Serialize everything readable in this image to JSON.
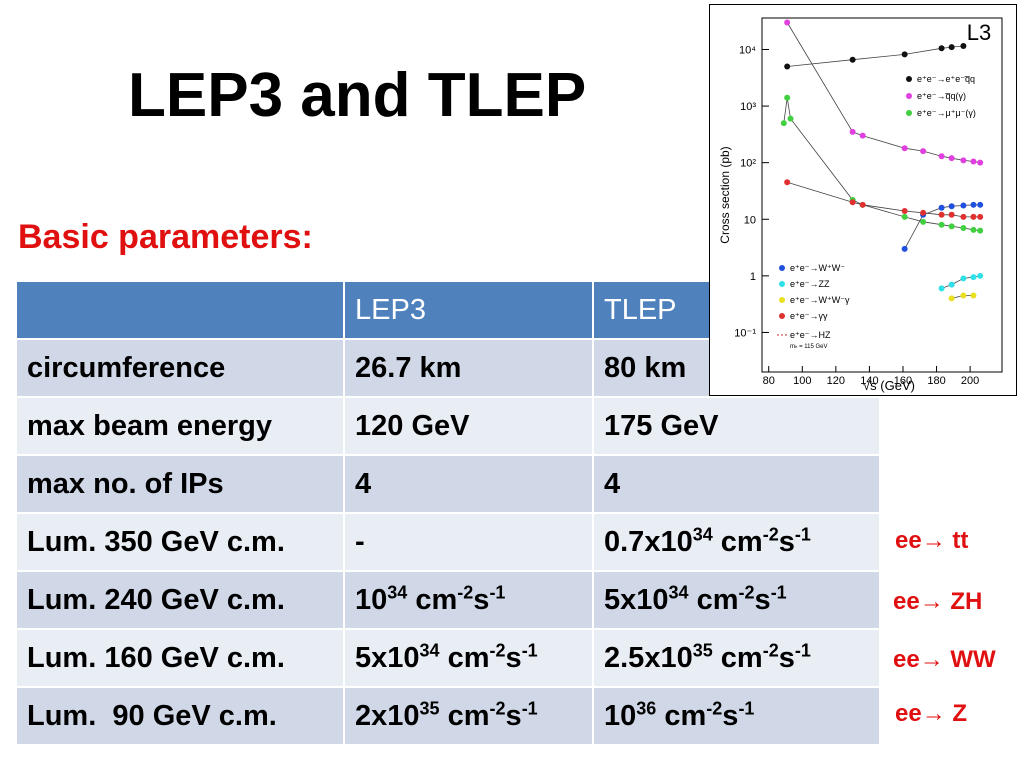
{
  "title": "LEP3 and TLEP",
  "subtitle": "Basic parameters:",
  "table": {
    "header": [
      "",
      "LEP3",
      "TLEP"
    ],
    "rows": [
      [
        "circumference",
        "26.7 km",
        "80 km"
      ],
      [
        "max beam energy",
        "120 GeV",
        "175 GeV"
      ],
      [
        "max no. of IPs",
        "4",
        "4"
      ],
      [
        "Lum. 350 GeV c.m.",
        "-",
        [
          "0.7x10",
          {
            "sup": "34"
          },
          " cm",
          {
            "sup": "-2"
          },
          "s",
          {
            "sup": "-1"
          }
        ]
      ],
      [
        "Lum. 240 GeV c.m.",
        [
          "10",
          {
            "sup": "34"
          },
          " cm",
          {
            "sup": "-2"
          },
          "s",
          {
            "sup": "-1"
          }
        ],
        [
          "5x10",
          {
            "sup": "34"
          },
          " cm",
          {
            "sup": "-2"
          },
          "s",
          {
            "sup": "-1"
          }
        ]
      ],
      [
        "Lum. 160 GeV c.m.",
        [
          "5x10",
          {
            "sup": "34"
          },
          " cm",
          {
            "sup": "-2"
          },
          "s",
          {
            "sup": "-1"
          }
        ],
        [
          "2.5x10",
          {
            "sup": "35"
          },
          " cm",
          {
            "sup": "-2"
          },
          "s",
          {
            "sup": "-1"
          }
        ]
      ],
      [
        "Lum.  90 GeV c.m.",
        [
          "2x10",
          {
            "sup": "35"
          },
          " cm",
          {
            "sup": "-2"
          },
          "s",
          {
            "sup": "-1"
          }
        ],
        [
          "10",
          {
            "sup": "36"
          },
          " cm",
          {
            "sup": "-2"
          },
          "s",
          {
            "sup": "-1"
          }
        ]
      ]
    ]
  },
  "annotations": [
    "ee→ tt",
    "ee→ ZH",
    "ee→ WW",
    "ee→ Z"
  ],
  "chart_data": {
    "type": "scatter",
    "title": "L3",
    "xlabel": "√s (GeV)",
    "ylabel": "Cross section (pb)",
    "note": "mₕ = 115 GeV",
    "log_y": true,
    "xlim": [
      76,
      219
    ],
    "ylim": [
      0.02,
      36000
    ],
    "xticks": [
      80,
      100,
      120,
      140,
      160,
      180,
      200
    ],
    "yticks": [
      {
        "value": 0.1,
        "label": "10⁻¹"
      },
      1,
      10,
      {
        "value": 100,
        "label": "10²"
      },
      {
        "value": 1000,
        "label": "10³"
      },
      {
        "value": 10000,
        "label": "10⁴"
      }
    ],
    "series": [
      {
        "name": "e⁺e⁻→e⁺e⁻q̅q",
        "color": "#111111",
        "x": [
          91,
          130,
          161,
          183,
          189,
          196
        ],
        "values": [
          5000,
          6600,
          8200,
          10500,
          11000,
          11500
        ]
      },
      {
        "name": "e⁺e⁻→q̅q(γ)",
        "color": "#e040e0",
        "x": [
          91,
          130,
          136,
          161,
          172,
          183,
          189,
          196,
          202,
          206
        ],
        "values": [
          30000,
          350,
          300,
          180,
          160,
          130,
          120,
          110,
          105,
          100
        ]
      },
      {
        "name": "e⁺e⁻→μ⁺μ⁻(γ)",
        "color": "#40d040",
        "x": [
          89,
          91,
          93,
          130,
          136,
          161,
          172,
          183,
          189,
          196,
          202,
          206
        ],
        "values": [
          500,
          1400,
          600,
          22,
          18,
          11,
          9,
          8,
          7.5,
          7,
          6.5,
          6.3
        ]
      },
      {
        "name": "e⁺e⁻→W⁺W⁻",
        "color": "#2050e0",
        "x": [
          161,
          172,
          183,
          189,
          196,
          202,
          206
        ],
        "values": [
          3,
          12,
          16,
          17,
          17.5,
          18,
          18
        ]
      },
      {
        "name": "e⁺e⁻→ZZ",
        "color": "#30e0e8",
        "x": [
          183,
          189,
          196,
          202,
          206
        ],
        "values": [
          0.6,
          0.7,
          0.9,
          0.95,
          1
        ]
      },
      {
        "name": "e⁺e⁻→W⁺W⁻γ",
        "color": "#e8e020",
        "x": [
          189,
          196,
          202
        ],
        "values": [
          0.4,
          0.45,
          0.45
        ]
      },
      {
        "name": "e⁺e⁻→γγ",
        "color": "#e03030",
        "x": [
          91,
          130,
          136,
          161,
          172,
          183,
          189,
          196,
          202,
          206
        ],
        "values": [
          45,
          20,
          18,
          14,
          13,
          12,
          12,
          11,
          11,
          11
        ]
      },
      {
        "name": "e⁺e⁻→HZ",
        "color": "#c03030",
        "x": [],
        "values": []
      }
    ]
  }
}
